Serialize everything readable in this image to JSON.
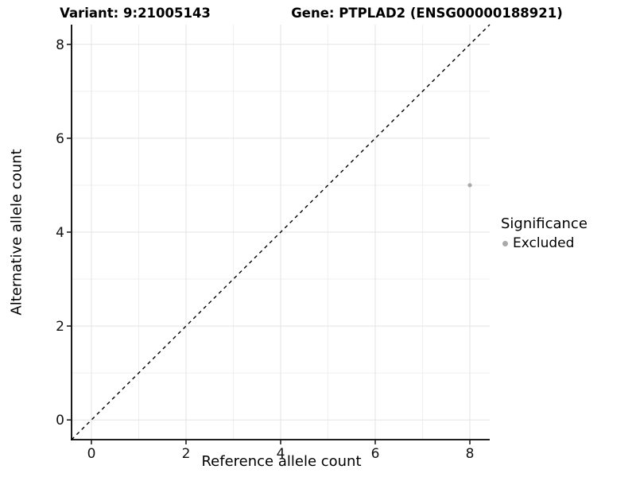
{
  "chart_data": {
    "type": "scatter",
    "title_left": "Variant: 9:21005143",
    "title_right": "Gene: PTPLAD2 (ENSG00000188921)",
    "xlabel": "Reference allele count",
    "ylabel": "Alternative allele count",
    "xlim": [
      -0.42,
      8.42
    ],
    "ylim": [
      -0.42,
      8.42
    ],
    "x_ticks": [
      0,
      2,
      4,
      6,
      8
    ],
    "y_ticks": [
      0,
      2,
      4,
      6,
      8
    ],
    "x_minor_ticks": [
      1,
      3,
      5,
      7
    ],
    "y_minor_ticks": [
      1,
      3,
      5,
      7
    ],
    "grid": "on",
    "series": [
      {
        "name": "Excluded",
        "color": "#a9a9a9",
        "points": [
          {
            "x": 8,
            "y": 5
          }
        ]
      }
    ],
    "reference_line": {
      "type": "identity",
      "equation": "y = x",
      "style": "dashed",
      "color": "#000000",
      "from": [
        -0.42,
        -0.42
      ],
      "to": [
        8.42,
        8.42
      ]
    },
    "legend": {
      "title": "Significance",
      "position": "right",
      "items": [
        {
          "label": "Excluded",
          "color": "#a9a9a9"
        }
      ]
    }
  },
  "colors": {
    "background": "#ffffff",
    "grid_major": "#e3e3e3",
    "grid_minor": "#efefef",
    "axis_line": "#000000",
    "tick_text": "#111111",
    "title_text": "#000000"
  }
}
